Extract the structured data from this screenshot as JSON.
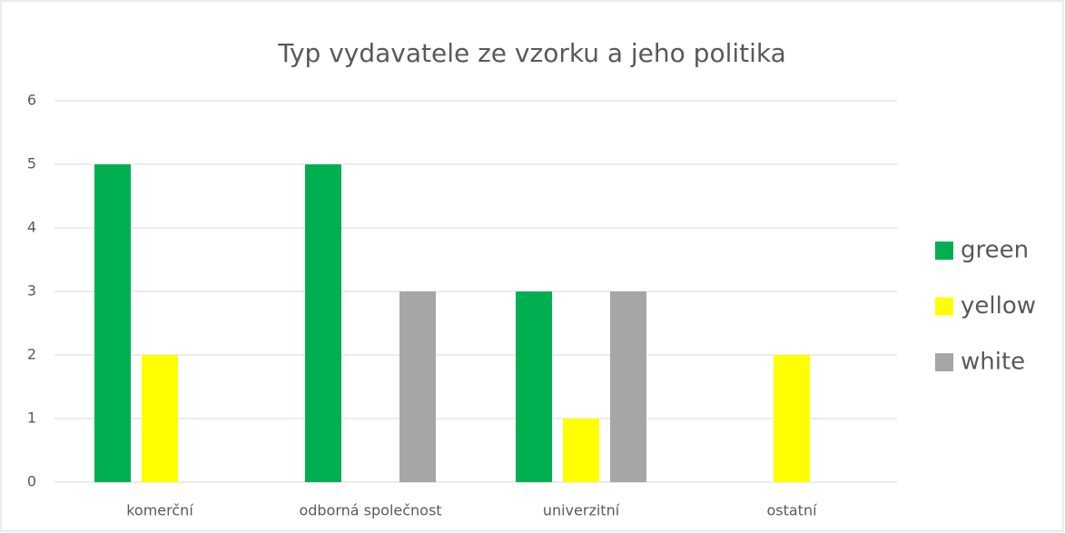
{
  "chart_data": {
    "type": "bar",
    "title": "Typ vydavatele ze vzorku a jeho politika",
    "categories": [
      "komerční",
      "odborná společnost",
      "univerzitní",
      "ostatní"
    ],
    "series": [
      {
        "name": "green",
        "color": "#00b050",
        "values": [
          5,
          5,
          3,
          0
        ]
      },
      {
        "name": "yellow",
        "color": "#ffff00",
        "values": [
          2,
          0,
          1,
          2
        ]
      },
      {
        "name": "white",
        "color": "#a6a6a6",
        "values": [
          0,
          3,
          3,
          0
        ]
      }
    ],
    "ylim": [
      0,
      6
    ],
    "yticks": [
      0,
      1,
      2,
      3,
      4,
      5,
      6
    ],
    "grid": true,
    "legend": "right"
  }
}
